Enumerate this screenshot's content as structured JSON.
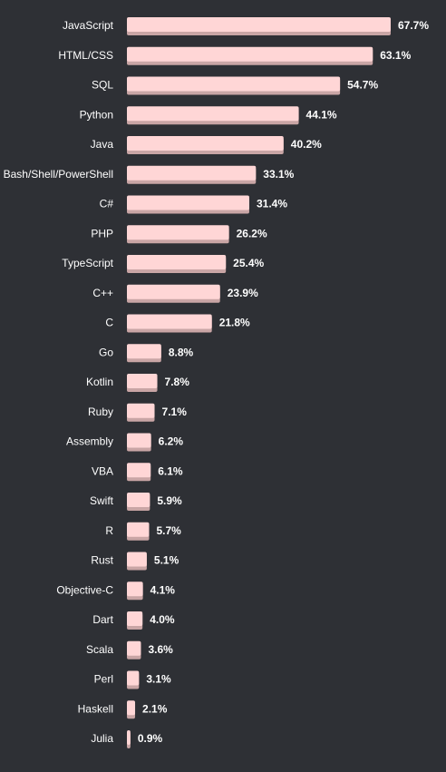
{
  "colors": {
    "background": "#2e3035",
    "bar": "#ffd6d6",
    "bar_shadow": "#c9a5a5",
    "text": "#ffffff"
  },
  "chart_data": {
    "type": "bar",
    "orientation": "horizontal",
    "title": "",
    "xlabel": "",
    "ylabel": "",
    "xlim": [
      0,
      67.7
    ],
    "grid": false,
    "value_suffix": "%",
    "categories": [
      "JavaScript",
      "HTML/CSS",
      "SQL",
      "Python",
      "Java",
      "Bash/Shell/PowerShell",
      "C#",
      "PHP",
      "TypeScript",
      "C++",
      "C",
      "Go",
      "Kotlin",
      "Ruby",
      "Assembly",
      "VBA",
      "Swift",
      "R",
      "Rust",
      "Objective-C",
      "Dart",
      "Scala",
      "Perl",
      "Haskell",
      "Julia"
    ],
    "values": [
      67.7,
      63.1,
      54.7,
      44.1,
      40.2,
      33.1,
      31.4,
      26.2,
      25.4,
      23.9,
      21.8,
      8.8,
      7.8,
      7.1,
      6.2,
      6.1,
      5.9,
      5.7,
      5.1,
      4.1,
      4.0,
      3.6,
      3.1,
      2.1,
      0.9
    ],
    "value_labels": [
      "67.7%",
      "63.1%",
      "54.7%",
      "44.1%",
      "40.2%",
      "33.1%",
      "31.4%",
      "26.2%",
      "25.4%",
      "23.9%",
      "21.8%",
      "8.8%",
      "7.8%",
      "7.1%",
      "6.2%",
      "6.1%",
      "5.9%",
      "5.7%",
      "5.1%",
      "4.1%",
      "4.0%",
      "3.6%",
      "3.1%",
      "2.1%",
      "0.9%"
    ]
  }
}
